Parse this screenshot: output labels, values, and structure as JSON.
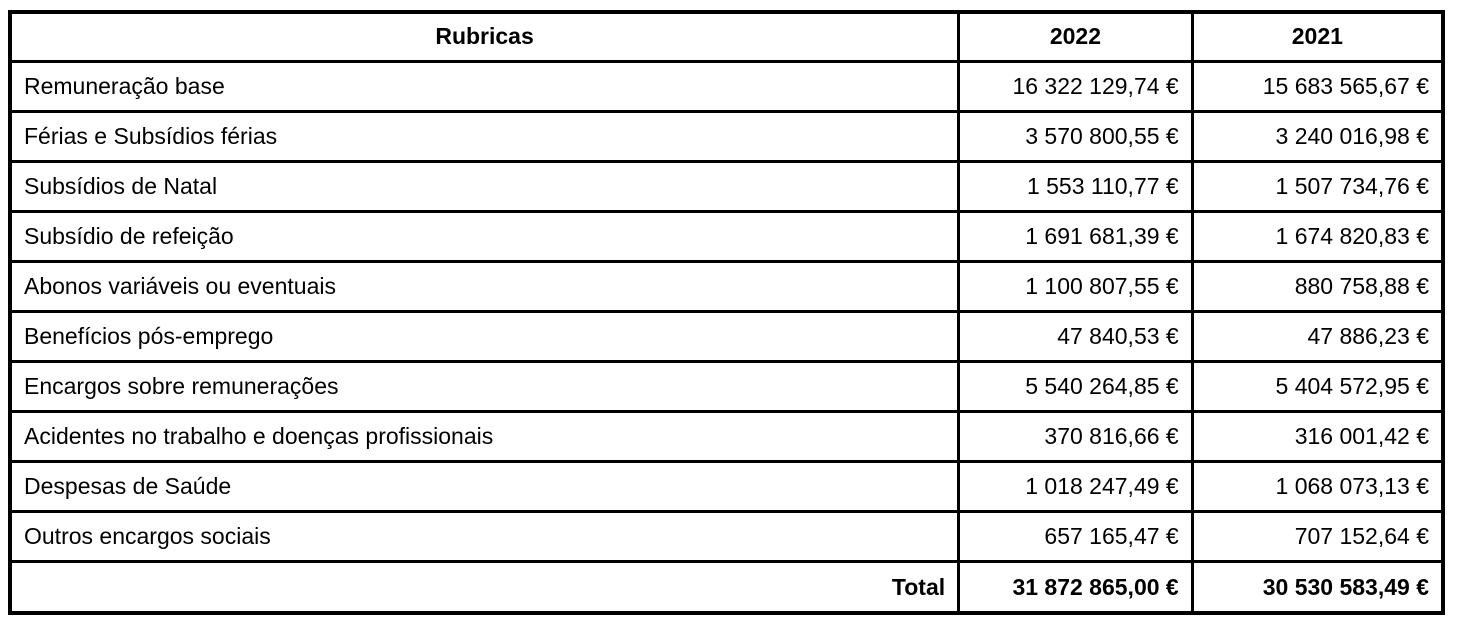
{
  "table": {
    "columns": [
      "Rubricas",
      "2022",
      "2021"
    ],
    "rows": [
      {
        "label": "Remuneração base",
        "v2022": "16 322 129,74 €",
        "v2021": "15 683 565,67 €"
      },
      {
        "label": "Férias e Subsídios férias",
        "v2022": "3 570 800,55 €",
        "v2021": "3 240 016,98 €"
      },
      {
        "label": "Subsídios de Natal",
        "v2022": "1 553 110,77 €",
        "v2021": "1 507 734,76 €"
      },
      {
        "label": "Subsídio de refeição",
        "v2022": "1 691 681,39 €",
        "v2021": "1 674 820,83 €"
      },
      {
        "label": "Abonos variáveis ou eventuais",
        "v2022": "1 100 807,55 €",
        "v2021": "880 758,88 €"
      },
      {
        "label": "Benefícios pós-emprego",
        "v2022": "47 840,53 €",
        "v2021": "47 886,23 €"
      },
      {
        "label": "Encargos sobre remunerações",
        "v2022": "5 540 264,85 €",
        "v2021": "5 404 572,95 €"
      },
      {
        "label": "Acidentes no trabalho e doenças profissionais",
        "v2022": "370 816,66 €",
        "v2021": "316 001,42 €"
      },
      {
        "label": "Despesas de Saúde",
        "v2022": "1 018 247,49 €",
        "v2021": "1 068 073,13 €"
      },
      {
        "label": "Outros encargos sociais",
        "v2022": "657 165,47 €",
        "v2021": "707 152,64 €"
      }
    ],
    "total": {
      "label": "Total",
      "v2022": "31 872 865,00 €",
      "v2021": "30 530 583,49 €"
    }
  }
}
